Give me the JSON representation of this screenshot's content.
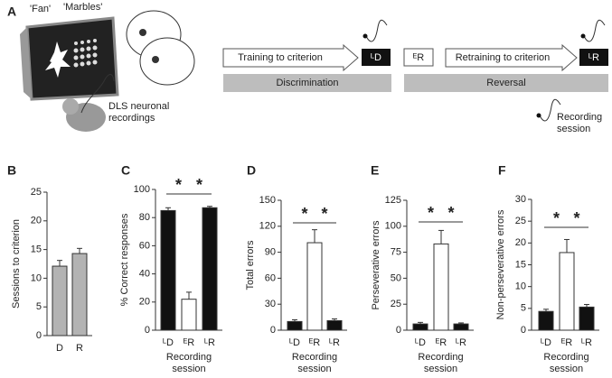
{
  "panel_a": {
    "letter": "A",
    "fan": "'Fan'",
    "marbles": "'Marbles'",
    "recording_label": "DLS neuronal recordings",
    "training": "Training to criterion",
    "ld": "ᴸD",
    "er": "ᴱR",
    "retraining": "Retraining to criterion",
    "lr": "ᴸR",
    "discrimination": "Discrimination",
    "reversal": "Reversal",
    "legend": "Recording session"
  },
  "chart_data": [
    {
      "type": "bar",
      "panel": "B",
      "ylabel": "Sessions to criterion",
      "categories": [
        "D",
        "R"
      ],
      "values": [
        12.1,
        14.3
      ],
      "errors": [
        1.0,
        0.9
      ],
      "colors": [
        "#b3b3b3",
        "#b3b3b3"
      ],
      "ylim": [
        0,
        25
      ],
      "yticks": [
        0,
        5,
        10,
        15,
        20,
        25
      ]
    },
    {
      "type": "bar",
      "panel": "C",
      "ylabel": "% Correct responses",
      "xlabel": "Recording session",
      "categories": [
        "ᴸD",
        "ᴱR",
        "ᴸR"
      ],
      "values": [
        85,
        22,
        87
      ],
      "errors": [
        2,
        5,
        1
      ],
      "colors": [
        "#111111",
        "#ffffff",
        "#111111"
      ],
      "ylim": [
        0,
        100
      ],
      "yticks": [
        0,
        20,
        40,
        60,
        80,
        100
      ],
      "annotations": [
        "*",
        "*"
      ]
    },
    {
      "type": "bar",
      "panel": "D",
      "ylabel": "Total errors",
      "xlabel": "Recording session",
      "categories": [
        "ᴸD",
        "ᴱR",
        "ᴸR"
      ],
      "values": [
        10,
        101,
        11
      ],
      "errors": [
        2,
        15,
        2
      ],
      "colors": [
        "#111111",
        "#ffffff",
        "#111111"
      ],
      "ylim": [
        0,
        150
      ],
      "yticks": [
        0,
        30,
        60,
        90,
        120,
        150
      ],
      "annotations": [
        "*",
        "*"
      ]
    },
    {
      "type": "bar",
      "panel": "E",
      "ylabel": "Perseverative errors",
      "xlabel": "Recording session",
      "categories": [
        "ᴸD",
        "ᴱR",
        "ᴸR"
      ],
      "values": [
        6,
        83,
        6
      ],
      "errors": [
        1.5,
        13,
        1
      ],
      "colors": [
        "#111111",
        "#ffffff",
        "#111111"
      ],
      "ylim": [
        0,
        125
      ],
      "yticks": [
        0,
        25,
        50,
        75,
        100,
        125
      ],
      "annotations": [
        "*",
        "*"
      ]
    },
    {
      "type": "bar",
      "panel": "F",
      "ylabel": "Non-perseverative errors",
      "xlabel": "Recording session",
      "categories": [
        "ᴸD",
        "ᴱR",
        "ᴸR"
      ],
      "values": [
        4.3,
        17.8,
        5.3
      ],
      "errors": [
        0.5,
        3,
        0.6
      ],
      "colors": [
        "#111111",
        "#ffffff",
        "#111111"
      ],
      "ylim": [
        0,
        30
      ],
      "yticks": [
        0,
        5,
        10,
        15,
        20,
        25,
        30
      ],
      "annotations": [
        "*",
        "*"
      ]
    }
  ]
}
